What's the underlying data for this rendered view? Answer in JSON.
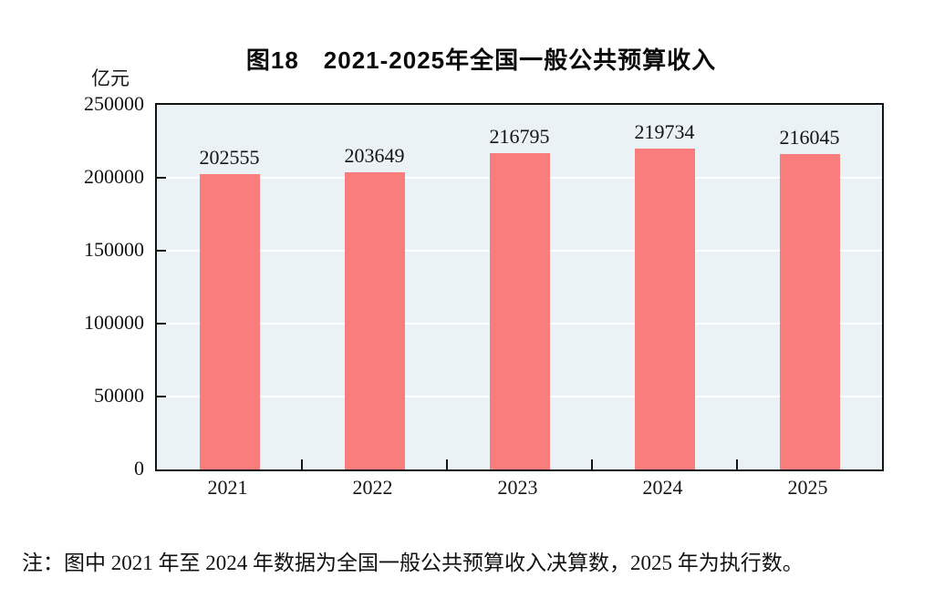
{
  "figure": {
    "title": "图18　2021-2025年全国一般公共预算收入",
    "unit_label": "亿元",
    "note": "注：图中 2021 年至 2024 年数据为全国一般公共预算收入决算数，2025 年为执行数。"
  },
  "chart_data": {
    "type": "bar",
    "title": "图18　2021-2025年全国一般公共预算收入",
    "categories": [
      "2021",
      "2022",
      "2023",
      "2024",
      "2025"
    ],
    "values": [
      202555,
      203649,
      216795,
      219734,
      216045
    ],
    "xlabel": "",
    "ylabel": "亿元",
    "ylim": [
      0,
      250000
    ],
    "yticks": [
      0,
      50000,
      100000,
      150000,
      200000,
      250000
    ],
    "grid": true,
    "legend_position": "none",
    "data_labels": true,
    "colors": {
      "bar_fill": "#fa7d7d",
      "plot_background": "#ebf2f5",
      "gridline": "#ffffff",
      "axis_frame": "#131313",
      "text": "#141414"
    }
  }
}
